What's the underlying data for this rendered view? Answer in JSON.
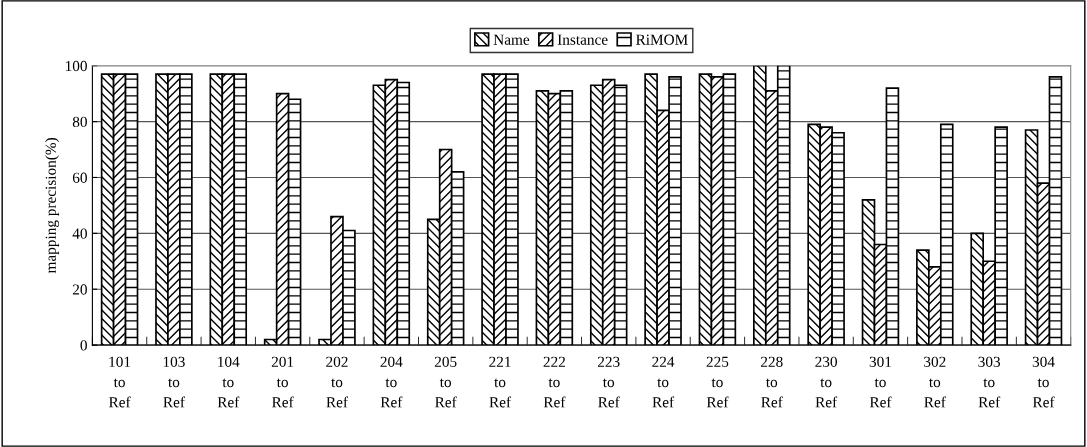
{
  "chart_data": {
    "type": "bar",
    "ylabel": "mapping precision(%)",
    "categories": [
      "101\nto\nRef",
      "103\nto\nRef",
      "104\nto\nRef",
      "201\nto\nRef",
      "202\nto\nRef",
      "204\nto\nRef",
      "205\nto\nRef",
      "221\nto\nRef",
      "222\nto\nRef",
      "223\nto\nRef",
      "224\nto\nRef",
      "225\nto\nRef",
      "228\nto\nRef",
      "230\nto\nRef",
      "301\nto\nRef",
      "302\nto\nRef",
      "303\nto\nRef",
      "304\nto\nRef"
    ],
    "series": [
      {
        "name": "Name",
        "color": "#000000",
        "values": [
          97,
          97,
          97,
          2,
          2,
          93,
          45,
          97,
          91,
          93,
          97,
          97,
          100,
          79,
          52,
          34,
          40,
          77
        ]
      },
      {
        "name": "Instance",
        "color": "#000000",
        "values": [
          97,
          97,
          97,
          90,
          46,
          95,
          70,
          97,
          90,
          95,
          84,
          96,
          91,
          78,
          36,
          28,
          30,
          58
        ]
      },
      {
        "name": "RiMOM",
        "color": "#000000",
        "values": [
          97,
          97,
          97,
          88,
          41,
          94,
          62,
          97,
          91,
          93,
          96,
          97,
          100,
          76,
          92,
          79,
          78,
          96
        ]
      }
    ],
    "ylim": [
      0,
      100
    ],
    "yticks": [
      0,
      20,
      40,
      60,
      80,
      100
    ],
    "grid": "y",
    "legend": "top"
  }
}
